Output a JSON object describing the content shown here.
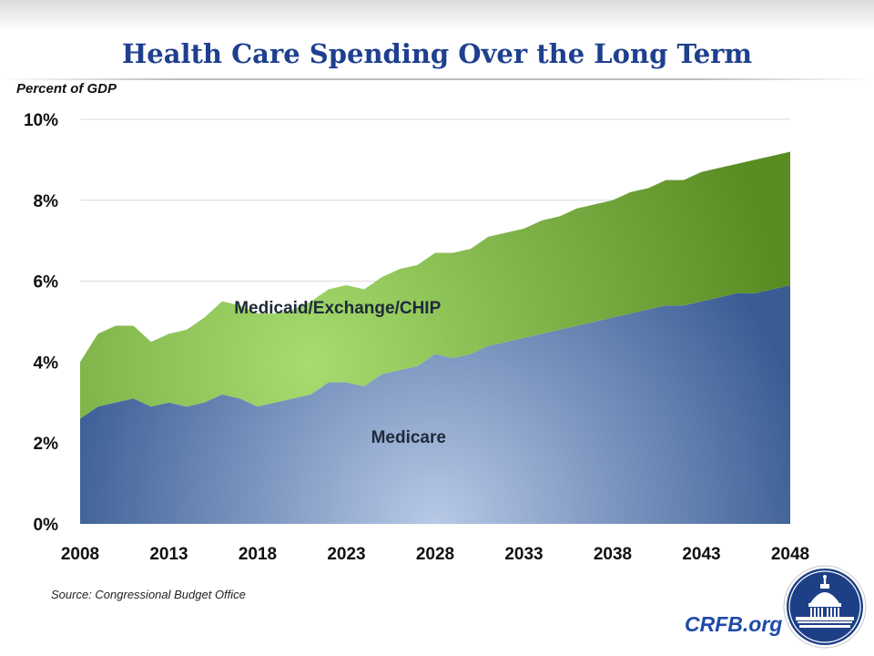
{
  "header": {
    "title": "Health Care Spending Over the Long Term",
    "y_axis_caption": "Percent of GDP"
  },
  "footer": {
    "source": "Source: Congressional Budget Office",
    "brand": "CRFB.org"
  },
  "colors": {
    "title": "#1f3f8f",
    "medicare_center": "#b7c9e6",
    "medicare_edge": "#3a5c94",
    "medicaid_center": "#a6dc70",
    "medicaid_edge": "#5a8c24",
    "gridline": "#d9d9d9",
    "brand": "#1e4aa8",
    "logo_blue": "#1c3f86"
  },
  "chart_data": {
    "type": "area",
    "stacked": true,
    "title": "Health Care Spending Over the Long Term",
    "xlabel": "",
    "ylabel": "Percent of GDP",
    "xlim": [
      2008,
      2048
    ],
    "ylim": [
      0,
      10
    ],
    "x_ticks": [
      2008,
      2013,
      2018,
      2023,
      2028,
      2033,
      2038,
      2043,
      2048
    ],
    "y_ticks": [
      0,
      2,
      4,
      6,
      8,
      10
    ],
    "tick_suffix": "%",
    "grid": true,
    "legend": "inline labels",
    "x": [
      2008,
      2009,
      2010,
      2011,
      2012,
      2013,
      2014,
      2015,
      2016,
      2017,
      2018,
      2019,
      2020,
      2021,
      2022,
      2023,
      2024,
      2025,
      2026,
      2027,
      2028,
      2029,
      2030,
      2031,
      2032,
      2033,
      2034,
      2035,
      2036,
      2037,
      2038,
      2039,
      2040,
      2041,
      2042,
      2043,
      2044,
      2045,
      2046,
      2047,
      2048
    ],
    "series": [
      {
        "name": "Medicare",
        "label": "Medicare",
        "values": [
          2.6,
          2.9,
          3.0,
          3.1,
          2.9,
          3.0,
          2.9,
          3.0,
          3.2,
          3.1,
          2.9,
          3.0,
          3.1,
          3.2,
          3.5,
          3.5,
          3.4,
          3.7,
          3.8,
          3.9,
          4.2,
          4.1,
          4.2,
          4.4,
          4.5,
          4.6,
          4.7,
          4.8,
          4.9,
          5.0,
          5.1,
          5.2,
          5.3,
          5.4,
          5.4,
          5.5,
          5.6,
          5.7,
          5.7,
          5.8,
          5.9
        ]
      },
      {
        "name": "Medicaid/Exchange/CHIP",
        "label": "Medicaid/Exchange/CHIP",
        "values": [
          1.4,
          1.8,
          1.9,
          1.8,
          1.6,
          1.7,
          1.9,
          2.1,
          2.3,
          2.3,
          2.3,
          2.2,
          2.2,
          2.3,
          2.3,
          2.4,
          2.4,
          2.4,
          2.5,
          2.5,
          2.5,
          2.6,
          2.6,
          2.7,
          2.7,
          2.7,
          2.8,
          2.8,
          2.9,
          2.9,
          2.9,
          3.0,
          3.0,
          3.1,
          3.1,
          3.2,
          3.2,
          3.2,
          3.3,
          3.3,
          3.3
        ]
      }
    ]
  }
}
